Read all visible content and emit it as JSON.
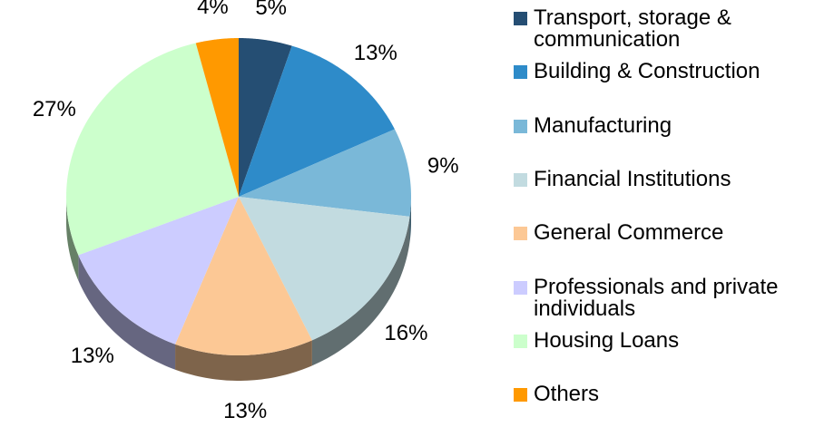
{
  "chart_data": {
    "type": "pie",
    "categories": [
      "Transport, storage & communication",
      "Building & Construction",
      "Manufacturing",
      "Financial Institutions",
      "General Commerce",
      "Professionals and private individuals",
      "Housing Loans",
      "Others"
    ],
    "values": [
      5,
      13,
      9,
      16,
      13,
      13,
      27,
      4
    ],
    "value_labels": [
      "5%",
      "13%",
      "9%",
      "16%",
      "13%",
      "13%",
      "27%",
      "4%"
    ],
    "colors": [
      "#254e73",
      "#2e8bc9",
      "#7ab8d8",
      "#c2dbe0",
      "#fcc895",
      "#ccccff",
      "#ccffcc",
      "#ff9900"
    ],
    "legend": "right"
  }
}
